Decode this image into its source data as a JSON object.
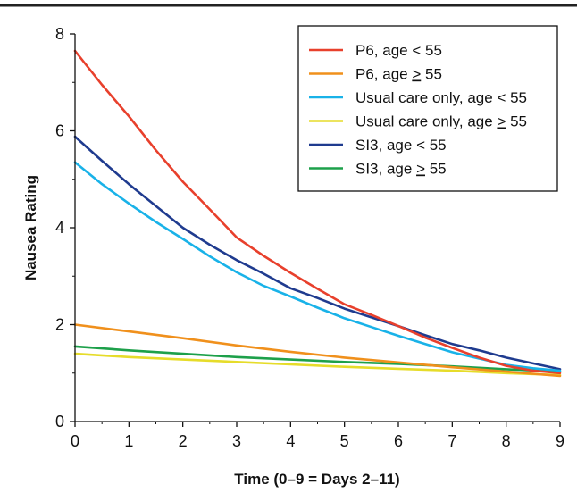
{
  "chart_data": {
    "type": "line",
    "title": "",
    "xlabel": "Time (0–9 = Days 2–11)",
    "ylabel": "Nausea Rating",
    "xlim": [
      0,
      9
    ],
    "ylim": [
      0,
      8
    ],
    "xticks": [
      0,
      1,
      2,
      3,
      4,
      5,
      6,
      7,
      8,
      9
    ],
    "yticks": [
      0,
      2,
      4,
      6,
      8
    ],
    "grid": false,
    "legend_position": "top-right",
    "series": [
      {
        "name": "P6, age < 55",
        "label_prefix": "P6, age ",
        "label_op": "<",
        "label_value": "55",
        "color": "#e8402c",
        "x": [
          0,
          0.5,
          1,
          1.5,
          2,
          2.5,
          3,
          3.5,
          4,
          4.5,
          5,
          5.5,
          6,
          6.5,
          7,
          7.5,
          8,
          8.5,
          9
        ],
        "y": [
          7.65,
          6.95,
          6.3,
          5.6,
          4.95,
          4.38,
          3.8,
          3.42,
          3.07,
          2.74,
          2.42,
          2.2,
          1.97,
          1.73,
          1.52,
          1.32,
          1.15,
          1.05,
          1.0
        ]
      },
      {
        "name": "P6, age ≥ 55",
        "label_prefix": "P6, age ",
        "label_op": "≥",
        "label_value": "55",
        "color": "#f0901c",
        "x": [
          0,
          1,
          2,
          3,
          4,
          5,
          6,
          7,
          8,
          9
        ],
        "y": [
          2.0,
          1.86,
          1.72,
          1.57,
          1.44,
          1.32,
          1.22,
          1.12,
          1.03,
          0.94
        ]
      },
      {
        "name": "Usual care only, age < 55",
        "label_prefix": "Usual care only, age ",
        "label_op": "<",
        "label_value": "55",
        "color": "#19b2e8",
        "x": [
          0,
          0.5,
          1,
          1.5,
          2,
          2.5,
          3,
          3.5,
          4,
          4.5,
          5,
          5.5,
          6,
          6.5,
          7,
          7.5,
          8,
          8.5,
          9
        ],
        "y": [
          5.35,
          4.9,
          4.5,
          4.12,
          3.77,
          3.41,
          3.08,
          2.8,
          2.58,
          2.35,
          2.13,
          1.95,
          1.77,
          1.6,
          1.43,
          1.3,
          1.17,
          1.1,
          1.05
        ]
      },
      {
        "name": "Usual care only, age ≥ 55",
        "label_prefix": "Usual care only, age ",
        "label_op": "≥",
        "label_value": "55",
        "color": "#e6dc2a",
        "x": [
          0,
          1,
          2,
          3,
          4,
          5,
          6,
          7,
          8,
          9
        ],
        "y": [
          1.4,
          1.33,
          1.28,
          1.23,
          1.18,
          1.13,
          1.09,
          1.05,
          1.0,
          0.96
        ]
      },
      {
        "name": "SI3, age < 55",
        "label_prefix": "SI3, age ",
        "label_op": "<",
        "label_value": "55",
        "color": "#1f3b8f",
        "x": [
          0,
          0.5,
          1,
          1.5,
          2,
          2.5,
          3,
          3.5,
          4,
          4.5,
          5,
          5.5,
          6,
          6.5,
          7,
          7.5,
          8,
          8.5,
          9
        ],
        "y": [
          5.88,
          5.38,
          4.9,
          4.45,
          4.0,
          3.65,
          3.33,
          3.05,
          2.75,
          2.55,
          2.33,
          2.15,
          1.97,
          1.78,
          1.6,
          1.47,
          1.32,
          1.2,
          1.08
        ]
      },
      {
        "name": "SI3, age ≥ 55",
        "label_prefix": "SI3, age ",
        "label_op": "≥",
        "label_value": "55",
        "color": "#1da04a",
        "x": [
          0,
          1,
          2,
          3,
          4,
          5,
          6,
          7,
          8,
          9
        ],
        "y": [
          1.55,
          1.47,
          1.4,
          1.33,
          1.28,
          1.23,
          1.19,
          1.14,
          1.08,
          1.03
        ]
      }
    ]
  }
}
